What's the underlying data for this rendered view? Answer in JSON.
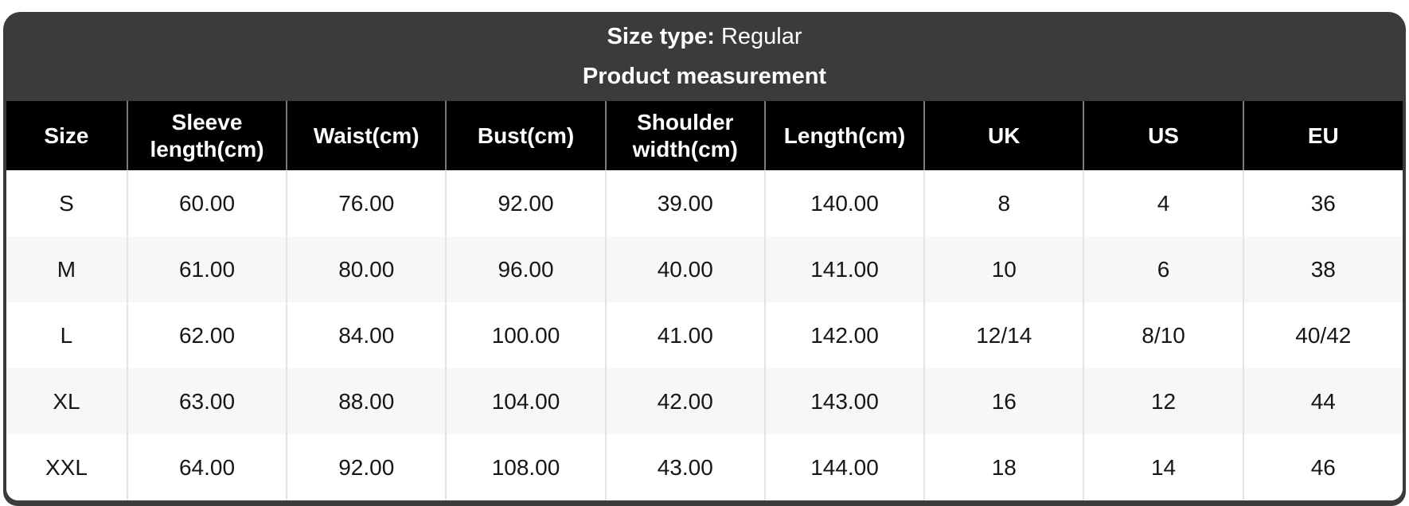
{
  "title_bar": {
    "size_type_label": "Size type:",
    "size_type_value": "Regular",
    "subtitle": "Product measurement"
  },
  "chart_data": {
    "type": "table",
    "title": "Product measurement",
    "size_type": "Regular",
    "columns": [
      "Size",
      "Sleeve length(cm)",
      "Waist(cm)",
      "Bust(cm)",
      "Shoulder width(cm)",
      "Length(cm)",
      "UK",
      "US",
      "EU"
    ],
    "rows": [
      [
        "S",
        "60.00",
        "76.00",
        "92.00",
        "39.00",
        "140.00",
        "8",
        "4",
        "36"
      ],
      [
        "M",
        "61.00",
        "80.00",
        "96.00",
        "40.00",
        "141.00",
        "10",
        "6",
        "38"
      ],
      [
        "L",
        "62.00",
        "84.00",
        "100.00",
        "41.00",
        "142.00",
        "12/14",
        "8/10",
        "40/42"
      ],
      [
        "XL",
        "63.00",
        "88.00",
        "104.00",
        "42.00",
        "143.00",
        "16",
        "12",
        "44"
      ],
      [
        "XXL",
        "64.00",
        "92.00",
        "108.00",
        "43.00",
        "144.00",
        "18",
        "14",
        "46"
      ]
    ]
  },
  "colors": {
    "container": "#3b3b3b",
    "header_bg": "#000000",
    "header_separator": "#7b7b7b",
    "body_separator": "#e4e4e4",
    "zebra_row": "#f7f7f7",
    "title_text": "#ffffff",
    "header_text": "#ffffff",
    "body_text": "#161616"
  }
}
